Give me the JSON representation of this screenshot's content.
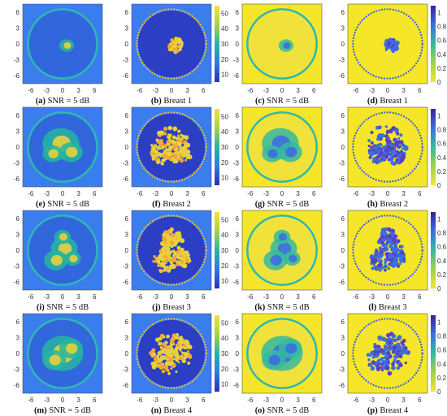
{
  "axes": {
    "ticks": [
      "-6",
      "-3",
      "0",
      "3",
      "6"
    ],
    "y_ticks": [
      "6",
      "3",
      "0",
      "-3",
      "-6"
    ]
  },
  "colorbars": {
    "permittivity_ticks": [
      "50",
      "40",
      "30",
      "20",
      "10"
    ],
    "conductivity_ticks": [
      "1",
      "0.8",
      "0.6",
      "0.4",
      "0.2",
      "0"
    ]
  },
  "colors": {
    "perm_background": "#3a7ded",
    "perm_low": "#2e52d6",
    "perm_mid": "#27b5a0",
    "perm_high": "#e6d23c",
    "cond_background": "#f5e629",
    "cond_low": "#3b6fe0",
    "cond_mid": "#35b9a0",
    "cond_high": "#f2e32e"
  },
  "rows": [
    {
      "captions": [
        {
          "letter": "(a)",
          "text": "SNR = 5 dB"
        },
        {
          "letter": "(b)",
          "text": "Breast 1"
        },
        {
          "letter": "(c)",
          "text": "SNR = 5 dB"
        },
        {
          "letter": "(d)",
          "text": "Breast 1"
        }
      ]
    },
    {
      "captions": [
        {
          "letter": "(e)",
          "text": "SNR = 5 dB"
        },
        {
          "letter": "(f)",
          "text": "Breast 2"
        },
        {
          "letter": "(g)",
          "text": "SNR = 5 dB"
        },
        {
          "letter": "(h)",
          "text": "Breast 2"
        }
      ]
    },
    {
      "captions": [
        {
          "letter": "(i)",
          "text": "SNR = 5 dB"
        },
        {
          "letter": "(j)",
          "text": "Breast 3"
        },
        {
          "letter": "(k)",
          "text": "SNR = 5 dB"
        },
        {
          "letter": "(l)",
          "text": "Breast 3"
        }
      ]
    },
    {
      "captions": [
        {
          "letter": "(m)",
          "text": "SNR = 5 dB"
        },
        {
          "letter": "(n)",
          "text": "Breast 4"
        },
        {
          "letter": "(o)",
          "text": "SNR = 5 dB"
        },
        {
          "letter": "(p)",
          "text": "Breast 4"
        }
      ]
    }
  ],
  "chart_data": {
    "type": "heatmap",
    "panel_grid": "4 rows x 4 columns",
    "columns": [
      "permittivity reconstruction",
      "permittivity ground truth",
      "conductivity reconstruction",
      "conductivity ground truth"
    ],
    "x_ticks": [
      -6,
      -3,
      0,
      3,
      6
    ],
    "y_ticks": [
      6,
      3,
      0,
      -3,
      -6
    ],
    "permittivity_colorbar_range": [
      5,
      55
    ],
    "conductivity_colorbar_range": [
      0,
      1.1
    ]
  }
}
